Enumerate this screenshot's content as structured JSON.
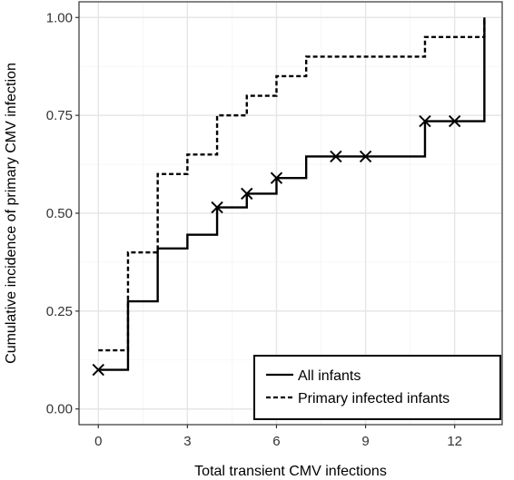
{
  "chart_data": {
    "type": "line",
    "title": "",
    "xlabel": "Total transient CMV infections",
    "ylabel": "Cumulative incidence of primary CMV infection",
    "xlim": [
      -0.65,
      13.6
    ],
    "ylim": [
      -0.04,
      1.04
    ],
    "x_ticks": [
      0,
      3,
      6,
      9,
      12
    ],
    "y_ticks": [
      0.0,
      0.25,
      0.5,
      0.75,
      1.0
    ],
    "x_tick_labels": [
      "0",
      "3",
      "6",
      "9",
      "12"
    ],
    "y_tick_labels": [
      "0.00",
      "0.25",
      "0.50",
      "0.75",
      "1.00"
    ],
    "grid": true,
    "legend_position": "bottom-right",
    "series": [
      {
        "name": "All infants",
        "line_style": "solid",
        "color": "#000000",
        "steps": [
          [
            0,
            0.1
          ],
          [
            1,
            0.275
          ],
          [
            2,
            0.41
          ],
          [
            3,
            0.445
          ],
          [
            4,
            0.515
          ],
          [
            5,
            0.55
          ],
          [
            6,
            0.59
          ],
          [
            7,
            0.645
          ],
          [
            8,
            0.645
          ],
          [
            9,
            0.645
          ],
          [
            11,
            0.735
          ],
          [
            12,
            0.735
          ],
          [
            13,
            1.0
          ]
        ],
        "censored": [
          [
            0,
            0.1
          ],
          [
            4,
            0.515
          ],
          [
            5,
            0.55
          ],
          [
            6,
            0.59
          ],
          [
            8,
            0.645
          ],
          [
            9,
            0.645
          ],
          [
            11,
            0.735
          ],
          [
            12,
            0.735
          ]
        ]
      },
      {
        "name": "Primary infected infants",
        "line_style": "dashed",
        "color": "#000000",
        "steps": [
          [
            0,
            0.15
          ],
          [
            1,
            0.4
          ],
          [
            2,
            0.6
          ],
          [
            3,
            0.65
          ],
          [
            4,
            0.75
          ],
          [
            5,
            0.8
          ],
          [
            6,
            0.85
          ],
          [
            7,
            0.9
          ],
          [
            11,
            0.95
          ],
          [
            13,
            1.0
          ]
        ],
        "censored": []
      }
    ]
  }
}
